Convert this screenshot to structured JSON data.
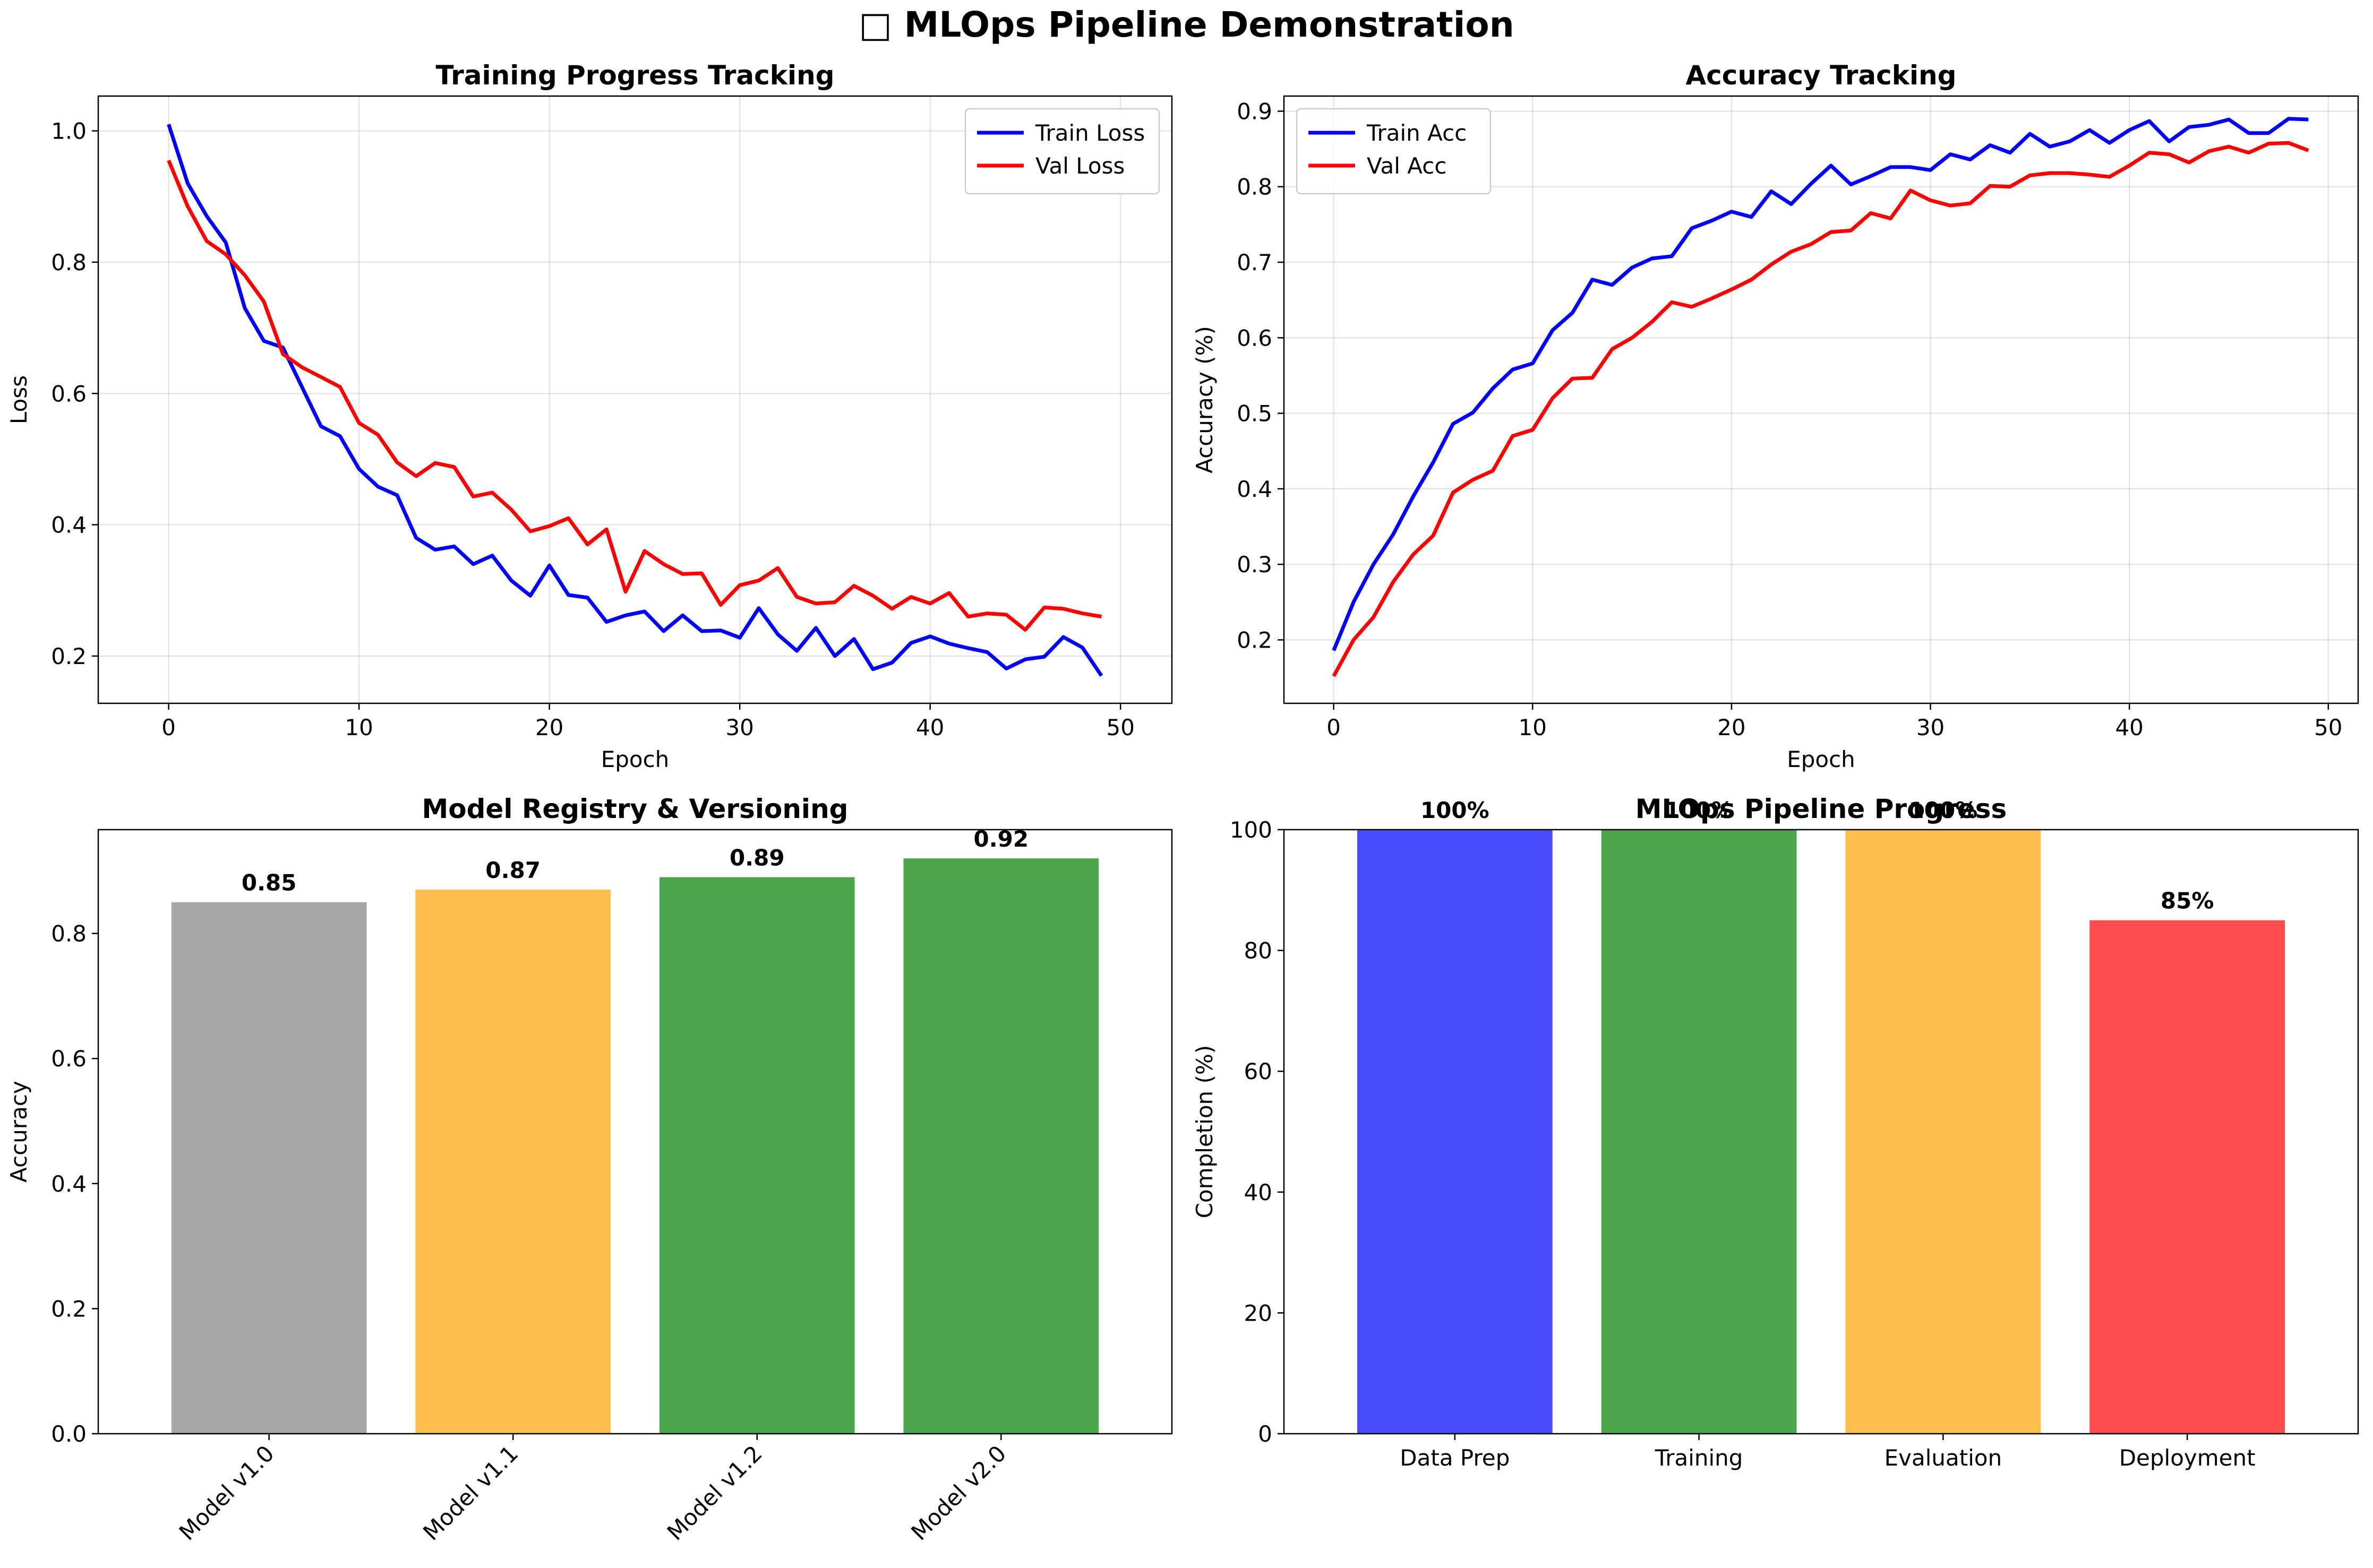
{
  "figure": {
    "title": "□ MLOps Pipeline Demonstration"
  },
  "chart_data": [
    {
      "type": "line",
      "title": "Training Progress Tracking",
      "xlabel": "Epoch",
      "ylabel": "Loss",
      "xlim": [
        -3.7,
        52.7
      ],
      "ylim": [
        0.128,
        1.053
      ],
      "xticks": [
        0,
        10,
        20,
        30,
        40,
        50
      ],
      "yticks": [
        0.2,
        0.4,
        0.6,
        0.8,
        1.0
      ],
      "ytick_labels": [
        "0.2",
        "0.4",
        "0.6",
        "0.8",
        "1.0"
      ],
      "grid": true,
      "legend_position": "top-right",
      "x": [
        0,
        1,
        2,
        3,
        4,
        5,
        6,
        7,
        8,
        9,
        10,
        11,
        12,
        13,
        14,
        15,
        16,
        17,
        18,
        19,
        20,
        21,
        22,
        23,
        24,
        25,
        26,
        27,
        28,
        29,
        30,
        31,
        32,
        33,
        34,
        35,
        36,
        37,
        38,
        39,
        40,
        41,
        42,
        43,
        44,
        45,
        46,
        47,
        48,
        49
      ],
      "series": [
        {
          "name": "Train Loss",
          "color": "#0000ff",
          "values": [
            1.01,
            0.92,
            0.87,
            0.83,
            0.73,
            0.68,
            0.67,
            0.61,
            0.55,
            0.535,
            0.485,
            0.458,
            0.445,
            0.38,
            0.362,
            0.367,
            0.34,
            0.353,
            0.315,
            0.292,
            0.338,
            0.293,
            0.289,
            0.252,
            0.262,
            0.268,
            0.238,
            0.262,
            0.238,
            0.239,
            0.228,
            0.273,
            0.233,
            0.208,
            0.243,
            0.2,
            0.226,
            0.18,
            0.19,
            0.22,
            0.23,
            0.219,
            0.212,
            0.206,
            0.181,
            0.195,
            0.199,
            0.229,
            0.213,
            0.17
          ]
        },
        {
          "name": "Val Loss",
          "color": "#ff0000",
          "values": [
            0.955,
            0.885,
            0.832,
            0.812,
            0.78,
            0.74,
            0.66,
            0.64,
            0.625,
            0.61,
            0.555,
            0.537,
            0.495,
            0.474,
            0.494,
            0.488,
            0.443,
            0.449,
            0.423,
            0.39,
            0.398,
            0.41,
            0.37,
            0.393,
            0.298,
            0.36,
            0.34,
            0.325,
            0.326,
            0.278,
            0.308,
            0.315,
            0.334,
            0.29,
            0.28,
            0.282,
            0.307,
            0.292,
            0.272,
            0.29,
            0.28,
            0.296,
            0.26,
            0.265,
            0.263,
            0.24,
            0.274,
            0.272,
            0.265,
            0.26
          ]
        }
      ]
    },
    {
      "type": "line",
      "title": "Accuracy Tracking",
      "xlabel": "Epoch",
      "ylabel": "Accuracy (%)",
      "xlim": [
        -2.5,
        51.5
      ],
      "ylim": [
        0.116,
        0.92
      ],
      "xticks": [
        0,
        10,
        20,
        30,
        40,
        50
      ],
      "yticks": [
        0.2,
        0.3,
        0.4,
        0.5,
        0.6,
        0.7,
        0.8,
        0.9
      ],
      "ytick_labels": [
        "0.2",
        "0.3",
        "0.4",
        "0.5",
        "0.6",
        "0.7",
        "0.8",
        "0.9"
      ],
      "grid": true,
      "legend_position": "top-left",
      "x": [
        0,
        1,
        2,
        3,
        4,
        5,
        6,
        7,
        8,
        9,
        10,
        11,
        12,
        13,
        14,
        15,
        16,
        17,
        18,
        19,
        20,
        21,
        22,
        23,
        24,
        25,
        26,
        27,
        28,
        29,
        30,
        31,
        32,
        33,
        34,
        35,
        36,
        37,
        38,
        39,
        40,
        41,
        42,
        43,
        44,
        45,
        46,
        47,
        48,
        49
      ],
      "series": [
        {
          "name": "Train Acc",
          "color": "#0000ff",
          "values": [
            0.186,
            0.25,
            0.3,
            0.34,
            0.39,
            0.435,
            0.486,
            0.501,
            0.533,
            0.558,
            0.566,
            0.61,
            0.633,
            0.677,
            0.67,
            0.693,
            0.705,
            0.708,
            0.745,
            0.755,
            0.767,
            0.76,
            0.794,
            0.777,
            0.804,
            0.828,
            0.803,
            0.814,
            0.826,
            0.826,
            0.822,
            0.843,
            0.836,
            0.855,
            0.845,
            0.87,
            0.853,
            0.86,
            0.875,
            0.858,
            0.875,
            0.887,
            0.86,
            0.879,
            0.882,
            0.889,
            0.871,
            0.871,
            0.89,
            0.889
          ]
        },
        {
          "name": "Val Acc",
          "color": "#ff0000",
          "values": [
            0.152,
            0.2,
            0.23,
            0.277,
            0.313,
            0.338,
            0.395,
            0.412,
            0.424,
            0.47,
            0.478,
            0.52,
            0.546,
            0.547,
            0.585,
            0.6,
            0.621,
            0.647,
            0.641,
            0.652,
            0.664,
            0.677,
            0.697,
            0.714,
            0.724,
            0.74,
            0.742,
            0.765,
            0.758,
            0.795,
            0.782,
            0.775,
            0.778,
            0.801,
            0.8,
            0.815,
            0.818,
            0.818,
            0.816,
            0.813,
            0.828,
            0.845,
            0.843,
            0.832,
            0.847,
            0.853,
            0.845,
            0.857,
            0.858,
            0.848
          ]
        }
      ]
    },
    {
      "type": "bar",
      "title": "Model Registry & Versioning",
      "xlabel": "",
      "ylabel": "Accuracy",
      "ylim": [
        0,
        0.966
      ],
      "yticks": [
        0.0,
        0.2,
        0.4,
        0.6,
        0.8
      ],
      "ytick_labels": [
        "0.0",
        "0.2",
        "0.4",
        "0.6",
        "0.8"
      ],
      "tick_rotation": 45,
      "categories": [
        "Model v1.0",
        "Model v1.1",
        "Model v1.2",
        "Model v2.0"
      ],
      "values": [
        0.85,
        0.87,
        0.89,
        0.92
      ],
      "value_labels": [
        "0.85",
        "0.87",
        "0.89",
        "0.92"
      ],
      "colors": [
        "#a6a6a6",
        "#ffbf4d",
        "#4ca64c",
        "#4ca64c"
      ]
    },
    {
      "type": "bar",
      "title": "MLOps Pipeline Progress",
      "xlabel": "",
      "ylabel": "Completion (%)",
      "ylim": [
        0,
        100
      ],
      "yticks": [
        0,
        20,
        40,
        60,
        80,
        100
      ],
      "ytick_labels": [
        "0",
        "20",
        "40",
        "60",
        "80",
        "100"
      ],
      "categories": [
        "Data Prep",
        "Training",
        "Evaluation",
        "Deployment"
      ],
      "values": [
        100,
        100,
        100,
        85
      ],
      "value_labels": [
        "100%",
        "100%",
        "100%",
        "85%"
      ],
      "colors": [
        "#4c4cff",
        "#4ca64c",
        "#ffbf4d",
        "#ff4c4c"
      ]
    }
  ]
}
